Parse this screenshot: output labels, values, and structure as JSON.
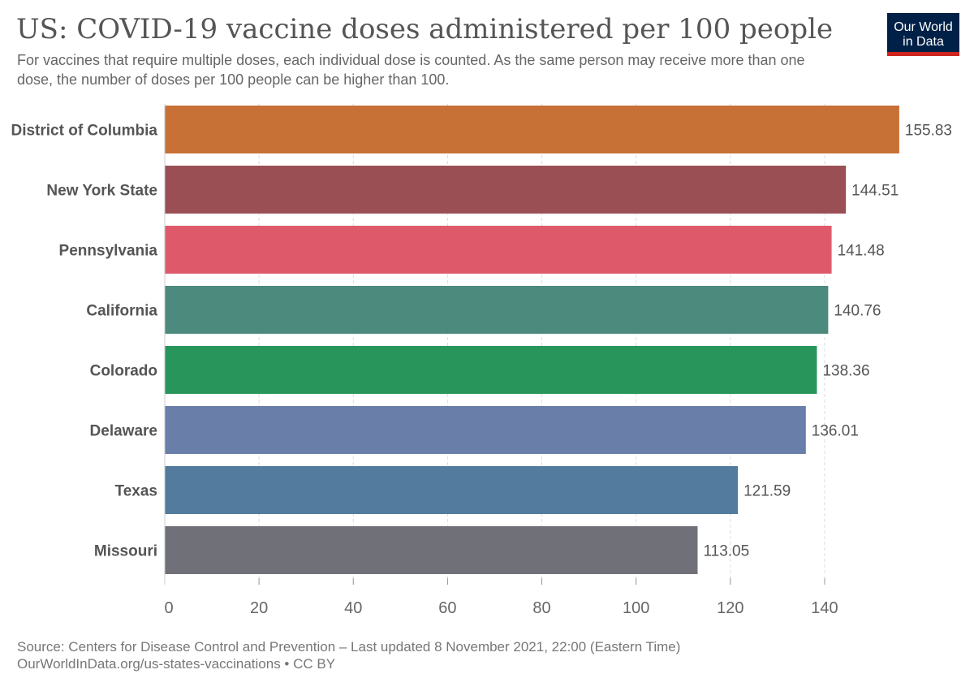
{
  "header": {
    "title": "US: COVID-19 vaccine doses administered per 100 people",
    "subtitle": "For vaccines that require multiple doses, each individual dose is counted. As the same person may receive more than one dose, the number of doses per 100 people can be higher than 100."
  },
  "logo": {
    "line1": "Our World",
    "line2": "in Data",
    "bg_color": "#002147",
    "accent_color": "#ce261e"
  },
  "footer": {
    "source": "Source: Centers for Disease Control and Prevention – Last updated 8 November 2021, 22:00 (Eastern Time)",
    "license": "OurWorldInData.org/us-states-vaccinations • CC BY"
  },
  "chart_data": {
    "type": "bar",
    "orientation": "horizontal",
    "categories": [
      "District of Columbia",
      "New York State",
      "Pennsylvania",
      "California",
      "Colorado",
      "Delaware",
      "Texas",
      "Missouri"
    ],
    "values": [
      155.83,
      144.51,
      141.48,
      140.76,
      138.36,
      136.01,
      121.59,
      113.05
    ],
    "value_labels": [
      "155.83",
      "144.51",
      "141.48",
      "140.76",
      "138.36",
      "136.01",
      "121.59",
      "113.05"
    ],
    "colors": [
      "#c87137",
      "#9a4f55",
      "#de5a6b",
      "#4c8a7e",
      "#28965a",
      "#6a7eaa",
      "#527b9d",
      "#707078"
    ],
    "xlim": [
      0,
      156
    ],
    "xticks": [
      0,
      20,
      40,
      60,
      80,
      100,
      120,
      140
    ],
    "xtick_labels": [
      "0",
      "20",
      "40",
      "60",
      "80",
      "100",
      "120",
      "140"
    ],
    "grid": "vertical-dashed",
    "xlabel": "",
    "ylabel": ""
  }
}
